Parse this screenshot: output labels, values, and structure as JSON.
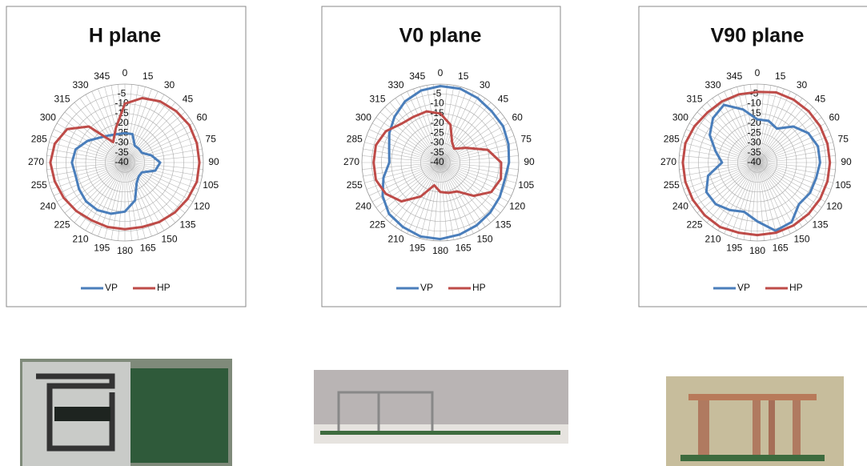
{
  "chart_data": [
    {
      "type": "polar",
      "title": "H plane",
      "categories": [
        0,
        15,
        30,
        45,
        60,
        75,
        90,
        105,
        120,
        135,
        150,
        165,
        180,
        195,
        210,
        225,
        240,
        255,
        270,
        285,
        300,
        315,
        330,
        345
      ],
      "rlim": [
        -40,
        0
      ],
      "rticks": [
        -40,
        -35,
        -30,
        -25,
        -20,
        -15,
        -10,
        -5
      ],
      "grid": true,
      "series": [
        {
          "name": "VP",
          "color": "#4a7ebb",
          "values": [
            -25,
            -25,
            -30,
            -30,
            -30,
            -26,
            -22,
            -24,
            -30,
            -30,
            -28,
            -20,
            -15,
            -13,
            -12,
            -12,
            -13,
            -14,
            -13,
            -14,
            -18,
            -22,
            -24,
            -25
          ]
        },
        {
          "name": "HP",
          "color": "#be4b48",
          "values": [
            -10,
            -6,
            -4,
            -3,
            -2,
            -2,
            -2,
            -2,
            -3,
            -4,
            -5,
            -6,
            -6,
            -6,
            -6,
            -5,
            -4,
            -3,
            -2,
            -3,
            -6,
            -14,
            -28,
            -22
          ]
        }
      ]
    },
    {
      "type": "polar",
      "title": "V0 plane",
      "categories": [
        0,
        15,
        30,
        45,
        60,
        75,
        90,
        105,
        120,
        135,
        150,
        165,
        180,
        195,
        210,
        225,
        240,
        255,
        270,
        285,
        300,
        315,
        330,
        345
      ],
      "rlim": [
        -40,
        0
      ],
      "rticks": [
        -40,
        -35,
        -30,
        -25,
        -20,
        -15,
        -10,
        -5
      ],
      "grid": true,
      "series": [
        {
          "name": "VP",
          "color": "#4a7ebb",
          "values": [
            -1,
            -1,
            -2,
            -3,
            -3,
            -4,
            -5,
            -6,
            -5,
            -4,
            -3,
            -2,
            -1,
            -1,
            -2,
            -3,
            -6,
            -10,
            -14,
            -13,
            -10,
            -7,
            -4,
            -2
          ]
        },
        {
          "name": "HP",
          "color": "#be4b48",
          "values": [
            -15,
            -20,
            -28,
            -30,
            -25,
            -15,
            -9,
            -8,
            -10,
            -16,
            -23,
            -24,
            -25,
            -28,
            -20,
            -12,
            -8,
            -6,
            -6,
            -6,
            -8,
            -12,
            -13,
            -13
          ]
        }
      ]
    },
    {
      "type": "polar",
      "title": "V90 plane",
      "categories": [
        0,
        15,
        30,
        45,
        60,
        75,
        90,
        105,
        120,
        135,
        150,
        165,
        180,
        195,
        210,
        225,
        240,
        255,
        270,
        285,
        300,
        315,
        330,
        345
      ],
      "rlim": [
        -40,
        0
      ],
      "rticks": [
        -40,
        -35,
        -30,
        -25,
        -20,
        -15,
        -10,
        -5
      ],
      "grid": true,
      "series": [
        {
          "name": "VP",
          "color": "#4a7ebb",
          "values": [
            -18,
            -18,
            -20,
            -14,
            -10,
            -8,
            -8,
            -9,
            -9,
            -10,
            -5,
            -4,
            -10,
            -14,
            -12,
            -10,
            -10,
            -14,
            -22,
            -18,
            -12,
            -8,
            -6,
            -12
          ]
        },
        {
          "name": "HP",
          "color": "#be4b48",
          "values": [
            -4,
            -3,
            -3,
            -3,
            -3,
            -3,
            -3,
            -3,
            -3,
            -3,
            -3,
            -3,
            -3,
            -3,
            -2,
            -2,
            -2,
            -2,
            -2,
            -2,
            -3,
            -4,
            -4,
            -4
          ]
        }
      ]
    }
  ]
}
